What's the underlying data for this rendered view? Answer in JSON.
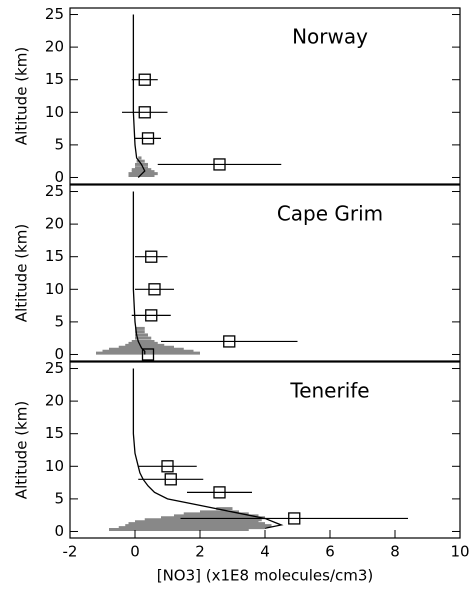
{
  "chart_data": [
    {
      "type": "scatter",
      "title": "Norway",
      "ylabel": "Altitude (km)",
      "xlim": [
        -2,
        10
      ],
      "ylim": [
        -1,
        26
      ],
      "yticks": [
        0,
        5,
        10,
        15,
        20,
        25
      ],
      "points": {
        "x": [
          0.3,
          0.3,
          0.4,
          2.6
        ],
        "y": [
          15,
          10,
          6,
          2
        ],
        "xerr": [
          0.4,
          0.7,
          0.4,
          1.9
        ]
      },
      "profile": {
        "x": [
          -0.05,
          -0.05,
          -0.05,
          -0.05,
          0.0,
          0.05,
          0.2,
          0.3,
          0.2,
          0.1
        ],
        "y": [
          25,
          20,
          15,
          10,
          5,
          3,
          2,
          1,
          0.5,
          0
        ]
      },
      "spread": {
        "y": [
          0.3,
          0.6,
          0.9,
          1.2,
          1.5,
          2,
          2.5,
          3
        ],
        "low": [
          -0.2,
          -0.2,
          -0.1,
          -0.1,
          0,
          0,
          0.05,
          0.1
        ],
        "high": [
          0.6,
          0.7,
          0.6,
          0.5,
          0.4,
          0.4,
          0.3,
          0.2
        ]
      }
    },
    {
      "type": "scatter",
      "title": "Cape Grim",
      "ylabel": "Altitude (km)",
      "xlim": [
        -2,
        10
      ],
      "ylim": [
        -1,
        26
      ],
      "yticks": [
        0,
        5,
        10,
        15,
        20,
        25
      ],
      "points": {
        "x": [
          0.5,
          0.6,
          0.5,
          2.9,
          0.4
        ],
        "y": [
          15,
          10,
          6,
          2,
          0
        ],
        "xerr": [
          0.5,
          0.6,
          0.6,
          2.1,
          null
        ]
      },
      "profile": {
        "x": [
          -0.05,
          -0.05,
          -0.05,
          0,
          0.05,
          0.1,
          0.2,
          0.3,
          0.3
        ],
        "y": [
          25,
          15,
          10,
          5,
          3,
          2,
          1,
          0.5,
          0
        ]
      },
      "spread": {
        "y": [
          0.2,
          0.5,
          0.8,
          1.1,
          1.4,
          1.7,
          2,
          2.5,
          3,
          3.5,
          4
        ],
        "low": [
          -1.2,
          -1.0,
          -0.8,
          -0.5,
          -0.3,
          -0.2,
          -0.1,
          0,
          0,
          0,
          0
        ],
        "high": [
          2.0,
          1.8,
          1.5,
          1.2,
          0.9,
          0.7,
          0.6,
          0.5,
          0.4,
          0.3,
          0.3
        ]
      }
    },
    {
      "type": "scatter",
      "title": "Tenerife",
      "ylabel": "Altitude (km)",
      "xlabel": "[NO3] (x1E8 molecules/cm3)",
      "xlim": [
        -2,
        10
      ],
      "xticks": [
        -2,
        0,
        2,
        4,
        6,
        8,
        10
      ],
      "ylim": [
        -1,
        26
      ],
      "yticks": [
        0,
        5,
        10,
        15,
        20,
        25
      ],
      "points": {
        "x": [
          1.0,
          1.1,
          2.6,
          4.9
        ],
        "y": [
          10,
          8,
          6,
          2
        ],
        "xerr": [
          0.9,
          1.0,
          1.0,
          3.5
        ]
      },
      "profile": {
        "x": [
          -0.05,
          -0.05,
          -0.05,
          0,
          0.1,
          0.15,
          0.25,
          0.4,
          0.6,
          1.0,
          2.0,
          3.0,
          4.0,
          4.5,
          4.0
        ],
        "y": [
          25,
          20,
          15,
          12,
          10,
          9,
          8,
          7,
          6,
          5,
          4,
          3,
          2,
          1,
          0.5
        ]
      },
      "spread": {
        "y": [
          0.3,
          0.6,
          0.9,
          1.2,
          1.5,
          1.8,
          2.1,
          2.4,
          2.7,
          3,
          3.5
        ],
        "low": [
          -0.8,
          -0.5,
          -0.3,
          -0.2,
          0,
          0.3,
          0.8,
          1.2,
          1.5,
          2.0,
          2.5
        ],
        "high": [
          3.5,
          4.0,
          4.2,
          4.0,
          3.8,
          3.9,
          4.0,
          3.8,
          3.5,
          3.2,
          3.0
        ]
      }
    }
  ]
}
